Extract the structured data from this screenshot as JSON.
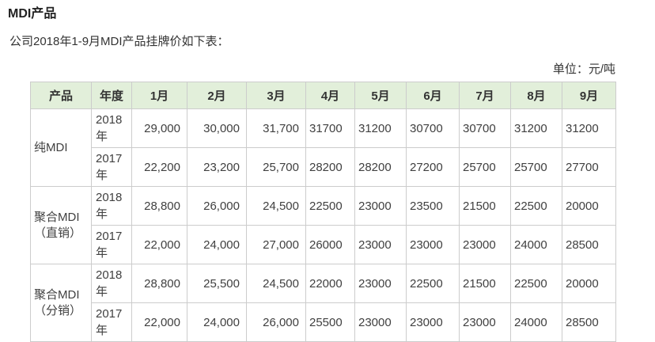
{
  "page": {
    "title": "MDI产品",
    "intro": "公司2018年1-9月MDI产品挂牌价如下表：",
    "unit_label": "单位：元/吨"
  },
  "table": {
    "columns": [
      "产品",
      "年度",
      "1月",
      "2月",
      "3月",
      "4月",
      "5月",
      "6月",
      "7月",
      "8月",
      "9月"
    ],
    "products": [
      {
        "name": "纯MDI",
        "rows": [
          {
            "year": "2018年",
            "values": [
              "29,000",
              "30,000",
              "31,700",
              "31700",
              "31200",
              "30700",
              "30700",
              "31200",
              "31200"
            ]
          },
          {
            "year": "2017年",
            "values": [
              "22,200",
              "23,200",
              "25,700",
              "28200",
              "28200",
              "27200",
              "25700",
              "25700",
              "27700"
            ]
          }
        ]
      },
      {
        "name": "聚合MDI（直销）",
        "rows": [
          {
            "year": "2018年",
            "values": [
              "28,800",
              "26,000",
              "24,500",
              "22500",
              "23000",
              "23500",
              "21500",
              "22500",
              "20000"
            ]
          },
          {
            "year": "2017年",
            "values": [
              "22,000",
              "24,000",
              "27,000",
              "26000",
              "23000",
              "23000",
              "23000",
              "24000",
              "28500"
            ]
          }
        ]
      },
      {
        "name": "聚合MDI（分销）",
        "rows": [
          {
            "year": "2018年",
            "values": [
              "28,800",
              "25,500",
              "24,500",
              "22000",
              "23000",
              "22500",
              "21500",
              "22500",
              "20000"
            ]
          },
          {
            "year": "2017年",
            "values": [
              "22,000",
              "24,000",
              "26,000",
              "25500",
              "23000",
              "23000",
              "23000",
              "24000",
              "28500"
            ]
          }
        ]
      }
    ],
    "colors": {
      "header_bg": "#e2efda",
      "border": "#cccccc",
      "text": "#404040"
    }
  }
}
